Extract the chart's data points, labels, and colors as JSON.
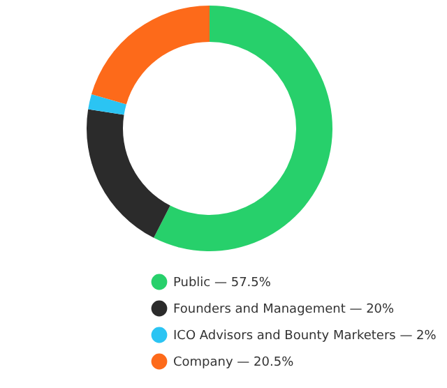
{
  "chart_data": {
    "type": "donut",
    "categories": [
      "Public — 57.5%",
      "Founders and Management — 20%",
      "ICO Advisors and Bounty Marketers — 2%",
      "Company — 20.5%"
    ],
    "values": [
      57.5,
      20,
      2,
      20.5
    ],
    "colors": [
      "#27d06b",
      "#2b2b2b",
      "#2bc4f3",
      "#fd6a1a"
    ],
    "legend": "bottom"
  }
}
